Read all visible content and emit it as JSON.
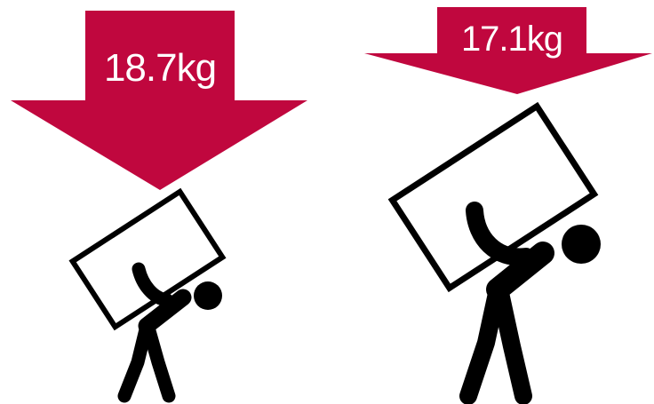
{
  "illustration": {
    "accent_color": "#c0073e",
    "figure_color": "#000000",
    "left_panel": {
      "weight_label": "18.7kg",
      "icon": "person-carrying-box-icon"
    },
    "right_panel": {
      "weight_label": "17.1kg",
      "icon": "person-carrying-box-icon"
    }
  }
}
